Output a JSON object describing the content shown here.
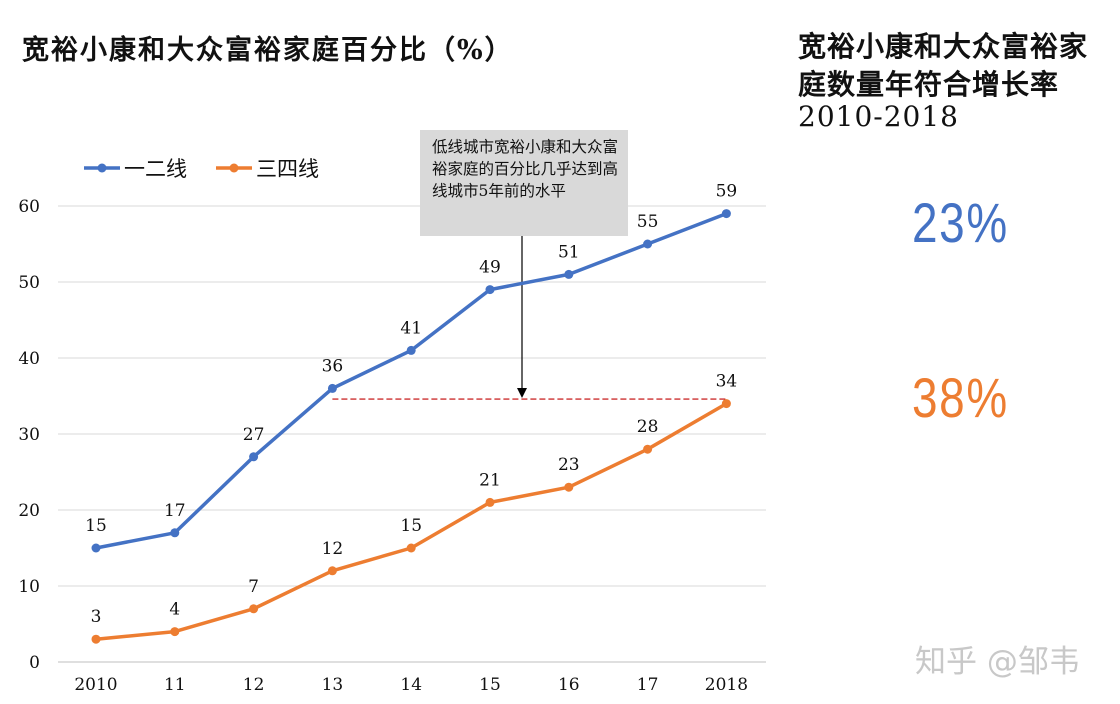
{
  "chart_data": {
    "type": "line",
    "title": "宽裕小康和大众富裕家庭百分比（%）",
    "categories": [
      "2010",
      "11",
      "12",
      "13",
      "14",
      "15",
      "16",
      "17",
      "2018"
    ],
    "series": [
      {
        "name": "一二线",
        "color": "#4472c4",
        "values": [
          15,
          17,
          27,
          36,
          41,
          49,
          51,
          55,
          59
        ]
      },
      {
        "name": "三四线",
        "color": "#ed7d31",
        "values": [
          3,
          4,
          7,
          12,
          15,
          21,
          23,
          28,
          34
        ]
      }
    ],
    "ylim": [
      0,
      60
    ],
    "yticks": [
      0,
      10,
      20,
      30,
      40,
      50,
      60
    ],
    "grid": true,
    "legend": "top-left",
    "reference_line": {
      "y": 34.6,
      "from_category": "13",
      "to_category": "2018",
      "color": "#c00000",
      "style": "dashed"
    },
    "annotation": "低线城市宽裕小康和大众富裕家庭的百分比几乎达到高线城市5年前的水平"
  },
  "sidebar": {
    "title": "宽裕小康和大众富裕家庭数量年符合增长率",
    "range": "2010-2018",
    "rates": [
      {
        "series": "一二线",
        "value": "23%",
        "color": "#4472c4"
      },
      {
        "series": "三四线",
        "value": "38%",
        "color": "#ed7d31"
      }
    ]
  },
  "watermark": "知乎 @邹韦"
}
